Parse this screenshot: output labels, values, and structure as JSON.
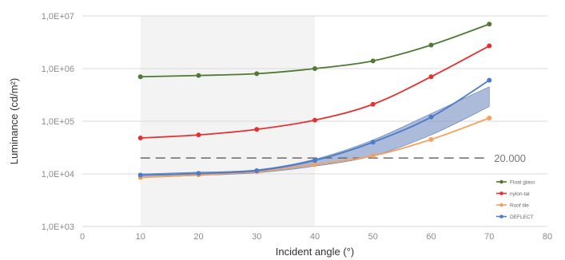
{
  "chart_data": {
    "type": "line",
    "xlabel": "Incident angle (°)",
    "ylabel": "Luminance (cd/m²)",
    "xlim": [
      0,
      80
    ],
    "ylim": [
      1000,
      10000000
    ],
    "yscale": "log",
    "x_ticks": [
      0,
      10,
      20,
      30,
      40,
      50,
      60,
      70,
      80
    ],
    "x_tick_labels": [
      "0",
      "10",
      "20",
      "30",
      "40",
      "50",
      "60",
      "70",
      "80"
    ],
    "y_ticks": [
      1000,
      10000,
      100000,
      1000000,
      10000000
    ],
    "y_tick_labels": [
      "1,0E+03",
      "1,0E+04",
      "1,0E+05",
      "1,0E+06",
      "1,0E+07"
    ],
    "grid": "horizontal",
    "legend_position": "bottom-right",
    "series": [
      {
        "name": "Float glass",
        "color": "#4e7a32",
        "x": [
          10,
          20,
          30,
          40,
          50,
          60,
          70
        ],
        "y": [
          700000,
          740000,
          800000,
          1000000,
          1400000,
          2800000,
          7000000
        ]
      },
      {
        "name": "nylon-tal",
        "color": "#e53030",
        "x": [
          10,
          20,
          30,
          40,
          50,
          60,
          70
        ],
        "y": [
          48000,
          55000,
          70000,
          105000,
          210000,
          700000,
          2700000
        ]
      },
      {
        "name": "Roof tile",
        "color": "#f5a05c",
        "x": [
          10,
          20,
          30,
          40,
          50,
          60,
          70
        ],
        "y": [
          8500,
          9600,
          11000,
          15000,
          22000,
          45000,
          115000
        ]
      },
      {
        "name": "DEFLECT",
        "color": "#4a7cc8",
        "x": [
          10,
          20,
          30,
          40,
          50,
          60,
          70
        ],
        "y": [
          9500,
          10200,
          11500,
          18000,
          40000,
          120000,
          600000
        ]
      }
    ],
    "band": {
      "color": "#7f97c6",
      "x": [
        10,
        20,
        30,
        40,
        50,
        60,
        70
      ],
      "upper": [
        10000,
        10800,
        12000,
        19000,
        44000,
        140000,
        450000
      ],
      "lower": [
        8500,
        9300,
        10500,
        14000,
        22000,
        55000,
        190000
      ]
    },
    "reference_line": {
      "y": 20000,
      "label": "20.000"
    },
    "shaded_x_range": [
      10,
      40
    ]
  }
}
